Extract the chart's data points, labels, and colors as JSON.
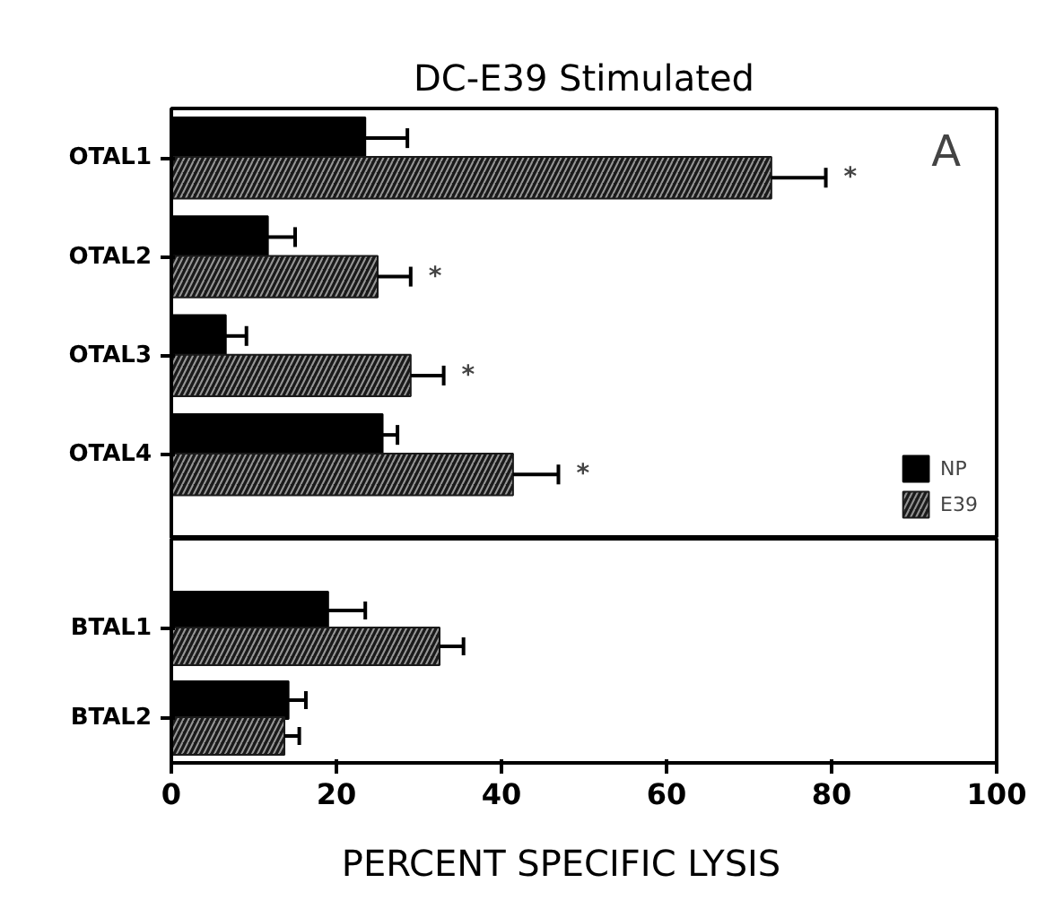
{
  "chart_data": [
    {
      "type": "bar",
      "orientation": "horizontal",
      "title": "DC-E39 Stimulated",
      "categories": [
        "OTAL1",
        "OTAL2",
        "OTAL3",
        "OTAL4"
      ],
      "series": [
        {
          "name": "NP",
          "color": "#000000",
          "values": [
            23.5,
            11.7,
            6.6,
            25.6
          ],
          "errors": [
            [
              23.5,
              28.6
            ],
            [
              11.7,
              15
            ],
            [
              6.6,
              9.1
            ],
            [
              25.6,
              27.4
            ]
          ]
        },
        {
          "name": "E39",
          "color": "#1a1a1a",
          "values": [
            72.7,
            25,
            29,
            41.4
          ],
          "errors": [
            [
              72.7,
              79.3
            ],
            [
              25,
              29
            ],
            [
              29,
              33
            ],
            [
              41.4,
              46.9
            ]
          ]
        }
      ],
      "xlim": [
        0,
        100
      ],
      "xticks": [
        0,
        20,
        40,
        60,
        80,
        100
      ],
      "tick_labels": "y",
      "legend": "bottom right",
      "grid": false,
      "annotations": [
        "A",
        "*",
        "*",
        "*",
        "*"
      ]
    },
    {
      "type": "bar",
      "orientation": "horizontal",
      "xlabel": "PERCENT   SPECIFIC   LYSIS",
      "categories": [
        "BTAL1",
        "BTAL2"
      ],
      "series": [
        {
          "color": "#000000",
          "values": [
            19,
            14.2
          ],
          "errors": [
            [
              19,
              23.5
            ],
            [
              14.2,
              16.3
            ]
          ]
        },
        {
          "color": "#1a1a1a",
          "values": [
            32.5,
            13.7
          ],
          "errors": [
            [
              32.5,
              35.4
            ],
            [
              13.7,
              15.5
            ]
          ]
        }
      ],
      "xlim": [
        0,
        100
      ],
      "xticks": [
        0,
        20,
        40,
        60,
        80,
        100
      ],
      "grid": false
    }
  ]
}
